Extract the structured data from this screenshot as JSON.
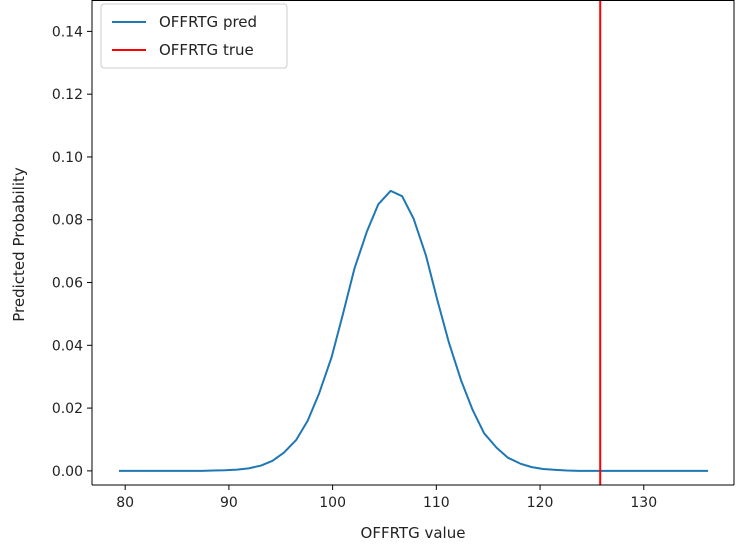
{
  "chart_data": {
    "type": "line",
    "title": "",
    "xlabel": "OFFRTG value",
    "ylabel": "Predicted Probability",
    "xlim": [
      76.8,
      138.7
    ],
    "ylim": [
      -0.0045,
      0.15
    ],
    "x_ticks": [
      80,
      90,
      100,
      110,
      120,
      130
    ],
    "x_tick_labels": [
      "80",
      "90",
      "100",
      "110",
      "120",
      "130"
    ],
    "y_ticks": [
      0.0,
      0.02,
      0.04,
      0.06,
      0.08,
      0.1,
      0.12,
      0.14
    ],
    "y_tick_labels": [
      "0.00",
      "0.02",
      "0.04",
      "0.06",
      "0.08",
      "0.10",
      "0.12",
      "0.14"
    ],
    "grid": false,
    "legend_position": "top-left",
    "series": [
      {
        "name": "OFFRTG pred",
        "color": "#1f77b4",
        "x": [
          79.4,
          80.6,
          81.7,
          82.8,
          84.0,
          85.1,
          86.2,
          87.4,
          88.5,
          89.6,
          90.8,
          91.9,
          93.1,
          94.2,
          95.3,
          96.5,
          97.6,
          98.7,
          99.9,
          101.0,
          102.1,
          103.3,
          104.4,
          105.6,
          106.7,
          107.8,
          109.0,
          110.1,
          111.2,
          112.4,
          113.5,
          114.6,
          115.8,
          116.9,
          118.1,
          119.2,
          120.3,
          121.5,
          122.6,
          123.7,
          124.9,
          126.0,
          127.1,
          128.3,
          129.4,
          130.6,
          131.7,
          132.8,
          134.0,
          135.1,
          136.2
        ],
        "y": [
          0.0,
          0.0,
          0.0,
          0.0,
          0.0,
          0.0,
          0.0,
          0.0,
          0.0001,
          0.0002,
          0.0004,
          0.0008,
          0.0017,
          0.0032,
          0.0058,
          0.0099,
          0.016,
          0.0247,
          0.0362,
          0.05,
          0.0644,
          0.0762,
          0.0849,
          0.0892,
          0.0875,
          0.0804,
          0.0686,
          0.0544,
          0.041,
          0.0287,
          0.0194,
          0.012,
          0.0074,
          0.0042,
          0.0023,
          0.0012,
          0.0006,
          0.0003,
          0.0001,
          0.0,
          0.0,
          0.0,
          0.0,
          0.0,
          0.0,
          0.0,
          0.0,
          0.0,
          0.0,
          0.0,
          0.0
        ]
      },
      {
        "name": "OFFRTG true",
        "color": "#ff0000",
        "vertical_line_x": 125.8
      }
    ]
  }
}
